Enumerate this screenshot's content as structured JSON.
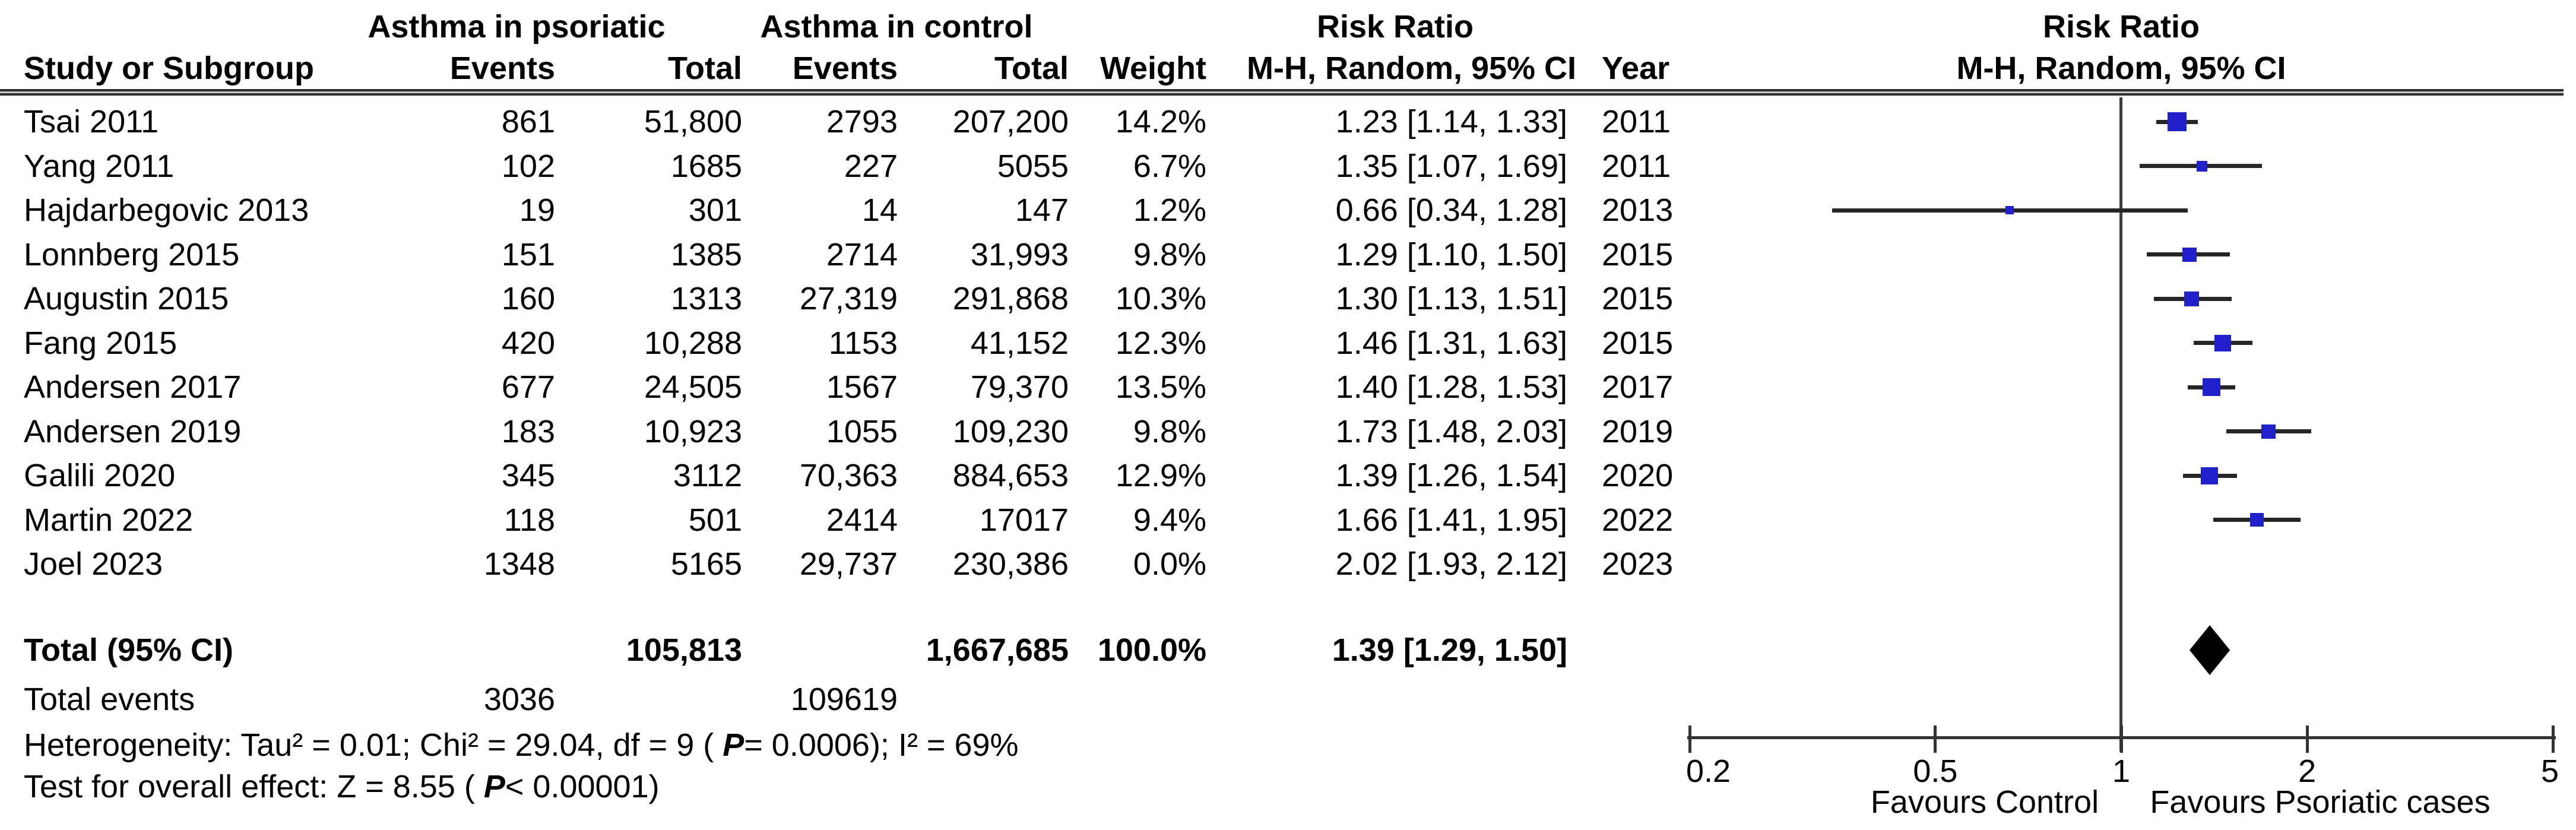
{
  "header": {
    "study_col": "Study or Subgroup",
    "group_psoriatic": "Asthma in psoriatic",
    "group_control": "Asthma in control",
    "events": "Events",
    "total": "Total",
    "weight": "Weight",
    "risk_ratio": "Risk Ratio",
    "mh_random_ci": "M-H, Random, 95% CI",
    "year": "Year"
  },
  "chart_data": {
    "type": "forest",
    "effect_measure": "Risk Ratio",
    "method": "M-H, Random, 95% CI",
    "x_scale": "log",
    "x_range": [
      0.2,
      5
    ],
    "x_ticks": [
      "0.2",
      "0.5",
      "1",
      "2",
      "5"
    ],
    "x_tick_values": [
      0.2,
      0.5,
      1,
      2,
      5
    ],
    "null_line": 1,
    "favours_left": "Favours Control",
    "favours_right": "Favours Psoriatic cases",
    "marker_color": "#2121cc",
    "diamond_color": "#000000",
    "studies": [
      {
        "name": "Tsai 2011",
        "events_psoriatic": "861",
        "total_psoriatic": "51,800",
        "events_control": "2793",
        "total_control": "207,200",
        "weight_label": "14.2%",
        "weight": 14.2,
        "ci_label": "1.23 [1.14, 1.33]",
        "rr": 1.23,
        "low": 1.14,
        "high": 1.33,
        "year": "2011"
      },
      {
        "name": "Yang 2011",
        "events_psoriatic": "102",
        "total_psoriatic": "1685",
        "events_control": "227",
        "total_control": "5055",
        "weight_label": "6.7%",
        "weight": 6.7,
        "ci_label": "1.35 [1.07, 1.69]",
        "rr": 1.35,
        "low": 1.07,
        "high": 1.69,
        "year": "2011"
      },
      {
        "name": "Hajdarbegovic 2013",
        "events_psoriatic": "19",
        "total_psoriatic": "301",
        "events_control": "14",
        "total_control": "147",
        "weight_label": "1.2%",
        "weight": 1.2,
        "ci_label": "0.66 [0.34, 1.28]",
        "rr": 0.66,
        "low": 0.34,
        "high": 1.28,
        "year": "2013"
      },
      {
        "name": "Lonnberg 2015",
        "events_psoriatic": "151",
        "total_psoriatic": "1385",
        "events_control": "2714",
        "total_control": "31,993",
        "weight_label": "9.8%",
        "weight": 9.8,
        "ci_label": "1.29 [1.10, 1.50]",
        "rr": 1.29,
        "low": 1.1,
        "high": 1.5,
        "year": "2015"
      },
      {
        "name": "Augustin 2015",
        "events_psoriatic": "160",
        "total_psoriatic": "1313",
        "events_control": "27,319",
        "total_control": "291,868",
        "weight_label": "10.3%",
        "weight": 10.3,
        "ci_label": "1.30 [1.13, 1.51]",
        "rr": 1.3,
        "low": 1.13,
        "high": 1.51,
        "year": "2015"
      },
      {
        "name": "Fang 2015",
        "events_psoriatic": "420",
        "total_psoriatic": "10,288",
        "events_control": "1153",
        "total_control": "41,152",
        "weight_label": "12.3%",
        "weight": 12.3,
        "ci_label": "1.46 [1.31, 1.63]",
        "rr": 1.46,
        "low": 1.31,
        "high": 1.63,
        "year": "2015"
      },
      {
        "name": "Andersen 2017",
        "events_psoriatic": "677",
        "total_psoriatic": "24,505",
        "events_control": "1567",
        "total_control": "79,370",
        "weight_label": "13.5%",
        "weight": 13.5,
        "ci_label": "1.40 [1.28, 1.53]",
        "rr": 1.4,
        "low": 1.28,
        "high": 1.53,
        "year": "2017"
      },
      {
        "name": "Andersen 2019",
        "events_psoriatic": "183",
        "total_psoriatic": "10,923",
        "events_control": "1055",
        "total_control": "109,230",
        "weight_label": "9.8%",
        "weight": 9.8,
        "ci_label": "1.73 [1.48, 2.03]",
        "rr": 1.73,
        "low": 1.48,
        "high": 2.03,
        "year": "2019"
      },
      {
        "name": "Galili 2020",
        "events_psoriatic": "345",
        "total_psoriatic": "3112",
        "events_control": "70,363",
        "total_control": "884,653",
        "weight_label": "12.9%",
        "weight": 12.9,
        "ci_label": "1.39 [1.26, 1.54]",
        "rr": 1.39,
        "low": 1.26,
        "high": 1.54,
        "year": "2020"
      },
      {
        "name": "Martin 2022",
        "events_psoriatic": "118",
        "total_psoriatic": "501",
        "events_control": "2414",
        "total_control": "17017",
        "weight_label": "9.4%",
        "weight": 9.4,
        "ci_label": "1.66 [1.41, 1.95]",
        "rr": 1.66,
        "low": 1.41,
        "high": 1.95,
        "year": "2022"
      },
      {
        "name": "Joel 2023",
        "events_psoriatic": "1348",
        "total_psoriatic": "5165",
        "events_control": "29,737",
        "total_control": "230,386",
        "weight_label": "0.0%",
        "weight": 0.0,
        "ci_label": "2.02 [1.93, 2.12]",
        "rr": 2.02,
        "low": 1.93,
        "high": 2.12,
        "year": "2023"
      }
    ],
    "total": {
      "label": "Total (95% CI)",
      "total_psoriatic": "105,813",
      "total_control": "1,667,685",
      "weight_label": "100.0%",
      "ci_label": "1.39 [1.29, 1.50]",
      "rr": 1.39,
      "low": 1.29,
      "high": 1.5
    },
    "total_events": {
      "label": "Total events",
      "psoriatic": "3036",
      "control": "109619"
    },
    "heterogeneity": {
      "pre": "Heterogeneity: Tau² = 0.01; Chi² = 29.04, df = 9 ( ",
      "p": "P",
      "post": "= 0.0006); I² = 69%"
    },
    "overall_effect": {
      "pre": "Test for overall effect: Z = 8.55 ( ",
      "p": "P",
      "post": "< 0.00001)"
    }
  }
}
